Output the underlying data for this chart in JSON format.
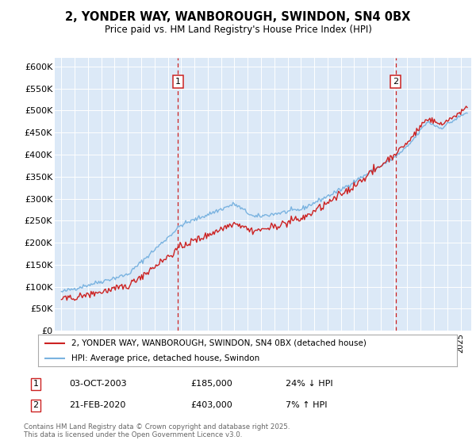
{
  "title": "2, YONDER WAY, WANBOROUGH, SWINDON, SN4 0BX",
  "subtitle": "Price paid vs. HM Land Registry's House Price Index (HPI)",
  "background_color": "#dce9f7",
  "plot_bg_color": "#dce9f7",
  "hpi_color": "#7ab3e0",
  "price_color": "#cc2222",
  "dashed_line_color": "#cc2222",
  "ylim": [
    0,
    620000
  ],
  "sale1_date": "03-OCT-2003",
  "sale1_price": 185000,
  "sale1_pct": "24% ↓ HPI",
  "sale1_x": 2003.75,
  "sale2_date": "21-FEB-2020",
  "sale2_price": 403000,
  "sale2_pct": "7% ↑ HPI",
  "sale2_x": 2020.125,
  "legend_line1": "2, YONDER WAY, WANBOROUGH, SWINDON, SN4 0BX (detached house)",
  "legend_line2": "HPI: Average price, detached house, Swindon",
  "footer1": "Contains HM Land Registry data © Crown copyright and database right 2025.",
  "footer2": "This data is licensed under the Open Government Licence v3.0."
}
